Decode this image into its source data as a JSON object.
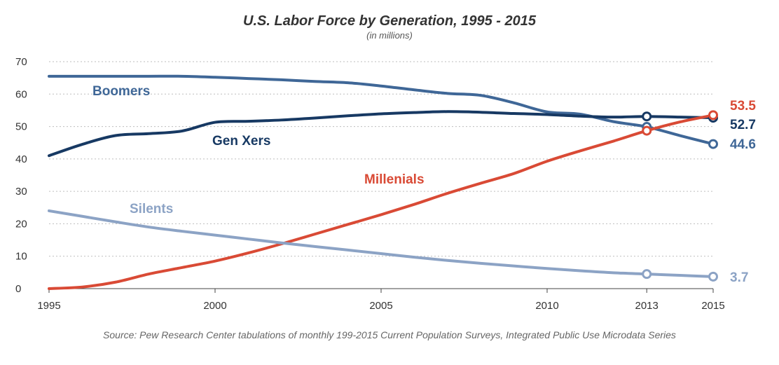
{
  "chart_data": {
    "type": "line",
    "title": "U.S. Labor Force by Generation, 1995 - 2015",
    "subtitle": "(in millions)",
    "xlabel": "",
    "ylabel": "",
    "x_ticks": [
      "1995",
      "2000",
      "2005",
      "2010",
      "2013",
      "2015"
    ],
    "y_ticks": [
      "0",
      "10",
      "20",
      "30",
      "40",
      "50",
      "60",
      "70"
    ],
    "xlim": [
      1995,
      2015
    ],
    "ylim": [
      0,
      70
    ],
    "grid": true,
    "series": [
      {
        "name": "Boomers",
        "color": "#3f6797",
        "x": [
          1995,
          1996,
          1997,
          1998,
          1999,
          2000,
          2001,
          2002,
          2003,
          2004,
          2005,
          2006,
          2007,
          2008,
          2009,
          2010,
          2011,
          2012,
          2013,
          2014,
          2015
        ],
        "values": [
          65.5,
          65.5,
          65.5,
          65.5,
          65.5,
          65.2,
          64.8,
          64.4,
          63.9,
          63.5,
          62.5,
          61.3,
          60.2,
          59.6,
          57.3,
          54.5,
          53.8,
          51.5,
          49.9,
          47.2,
          44.6
        ],
        "end_label": "44.6"
      },
      {
        "name": "Gen Xers",
        "color": "#173963",
        "x": [
          1995,
          1996,
          1997,
          1998,
          1999,
          2000,
          2001,
          2002,
          2003,
          2004,
          2005,
          2006,
          2007,
          2008,
          2009,
          2010,
          2011,
          2012,
          2013,
          2014,
          2015
        ],
        "values": [
          41,
          44.5,
          47.2,
          47.8,
          48.6,
          51.3,
          51.6,
          52,
          52.6,
          53.3,
          53.9,
          54.3,
          54.6,
          54.4,
          54,
          53.7,
          53.2,
          52.9,
          53.1,
          52.9,
          52.7
        ],
        "end_label": "52.7"
      },
      {
        "name": "Millenials",
        "color": "#d94a35",
        "x": [
          1995,
          1996,
          1997,
          1998,
          1999,
          2000,
          2001,
          2002,
          2003,
          2004,
          2005,
          2006,
          2007,
          2008,
          2009,
          2010,
          2011,
          2012,
          2013,
          2014,
          2015
        ],
        "values": [
          0,
          0.5,
          2,
          4.5,
          6.5,
          8.5,
          11,
          13.8,
          16.8,
          19.8,
          22.8,
          26,
          29.4,
          32.5,
          35.5,
          39.3,
          42.5,
          45.5,
          48.7,
          51.4,
          53.5
        ],
        "end_label": "53.5"
      },
      {
        "name": "Silents",
        "color": "#8ca3c5",
        "x": [
          1995,
          1996,
          1997,
          1998,
          1999,
          2000,
          2001,
          2002,
          2003,
          2004,
          2005,
          2006,
          2007,
          2008,
          2009,
          2010,
          2011,
          2012,
          2013,
          2014,
          2015
        ],
        "values": [
          24,
          22.3,
          20.6,
          19,
          17.7,
          16.5,
          15.3,
          14.1,
          13,
          11.9,
          10.8,
          9.7,
          8.7,
          7.8,
          7,
          6.2,
          5.5,
          4.9,
          4.5,
          4.1,
          3.7
        ],
        "end_label": "3.7"
      }
    ],
    "markers": [
      {
        "series": "Boomers",
        "x": 2013,
        "y": 49.9
      },
      {
        "series": "Boomers",
        "x": 2015,
        "y": 44.6
      },
      {
        "series": "Gen Xers",
        "x": 2013,
        "y": 53.1
      },
      {
        "series": "Gen Xers",
        "x": 2015,
        "y": 52.7
      },
      {
        "series": "Millenials",
        "x": 2013,
        "y": 48.7
      },
      {
        "series": "Millenials",
        "x": 2015,
        "y": 53.5
      },
      {
        "series": "Silents",
        "x": 2013,
        "y": 4.5
      },
      {
        "series": "Silents",
        "x": 2015,
        "y": 3.7
      }
    ],
    "series_labels": [
      {
        "name": "Boomers",
        "text": "Boomers"
      },
      {
        "name": "Gen Xers",
        "text": "Gen Xers"
      },
      {
        "name": "Millenials",
        "text": "Millenials"
      },
      {
        "name": "Silents",
        "text": "Silents"
      }
    ],
    "source": "Source: Pew Research Center tabulations of monthly 199-2015 Current Population Surveys, Integrated Public Use Microdata Series"
  }
}
